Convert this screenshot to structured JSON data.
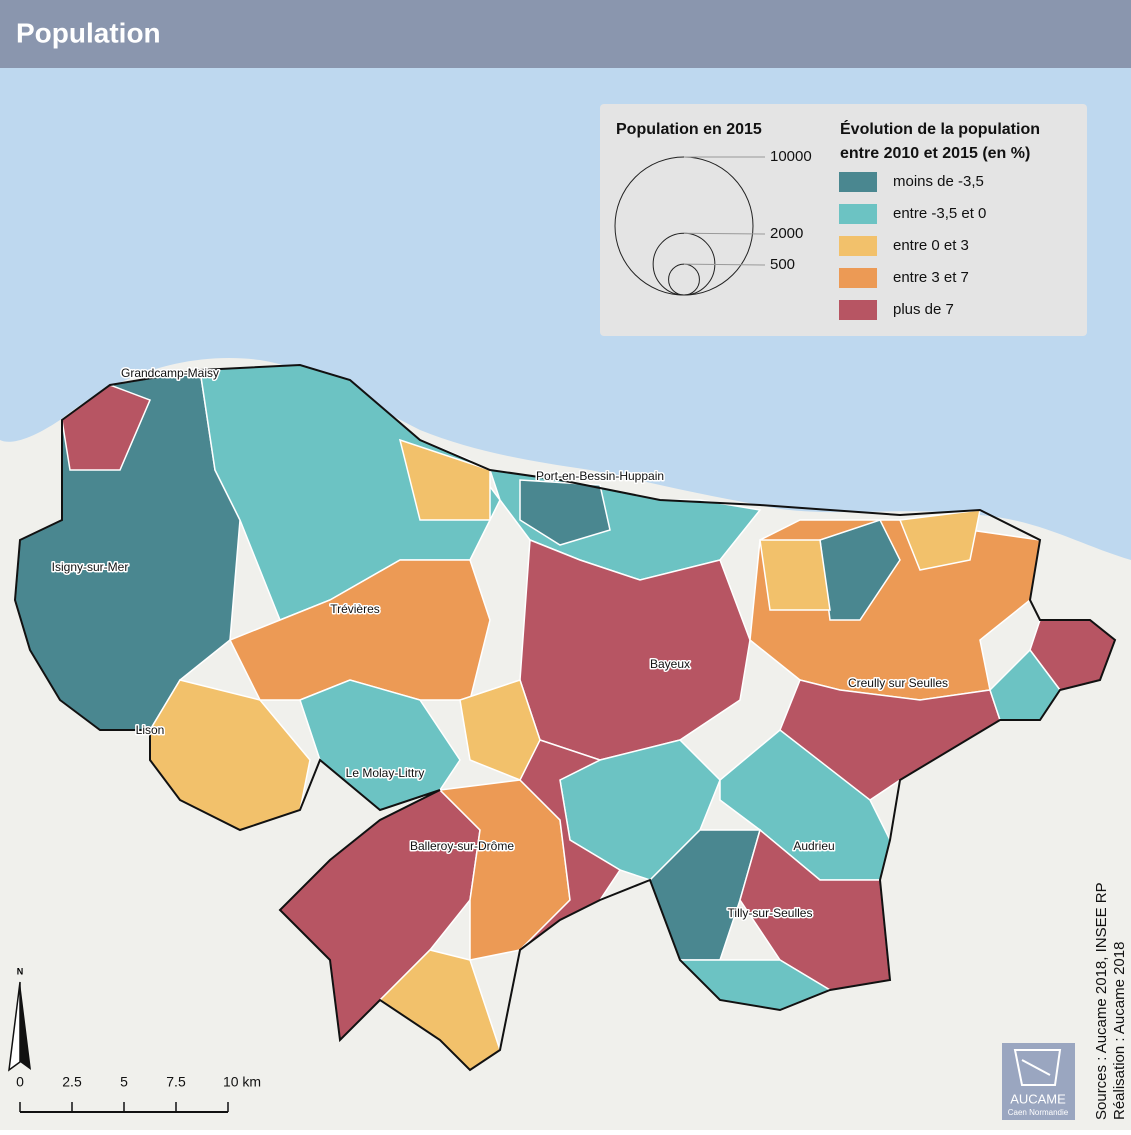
{
  "header": {
    "title": "Population"
  },
  "legend": {
    "size_title": "Population en 2015",
    "size_values": [
      10000,
      2000,
      500
    ],
    "class_title_lines": [
      "Évolution de la population",
      "entre 2010 et 2015 (en %)"
    ],
    "classes": [
      {
        "label": "moins de -3,5",
        "color": "#4a8790"
      },
      {
        "label": "entre -3,5 et 0",
        "color": "#6cc3c3"
      },
      {
        "label": "entre 0 et 3",
        "color": "#f2c16b"
      },
      {
        "label": "entre 3 et 7",
        "color": "#ec9a55"
      },
      {
        "label": "plus de 7",
        "color": "#b75563"
      }
    ]
  },
  "places": [
    "Grandcamp-Maisy",
    "Port-en-Bessin-Huppain",
    "Isigny-sur-Mer",
    "Trévières",
    "Bayeux",
    "Creully sur Seulles",
    "Lison",
    "Le Molay-Littry",
    "Balleroy-sur-Drôme",
    "Audrieu",
    "Tilly-sur-Seulles"
  ],
  "north": "N",
  "scale_bar": {
    "ticks": [
      0,
      2.5,
      5,
      7.5,
      {
        "value": 10,
        "label": "10 km"
      }
    ]
  },
  "sources": [
    "Sources : Aucame 2018, INSEE RP",
    "Réalisation : Aucame 2018"
  ],
  "logo": {
    "name": "AUCAME",
    "subtitle": "Caen Normandie"
  }
}
